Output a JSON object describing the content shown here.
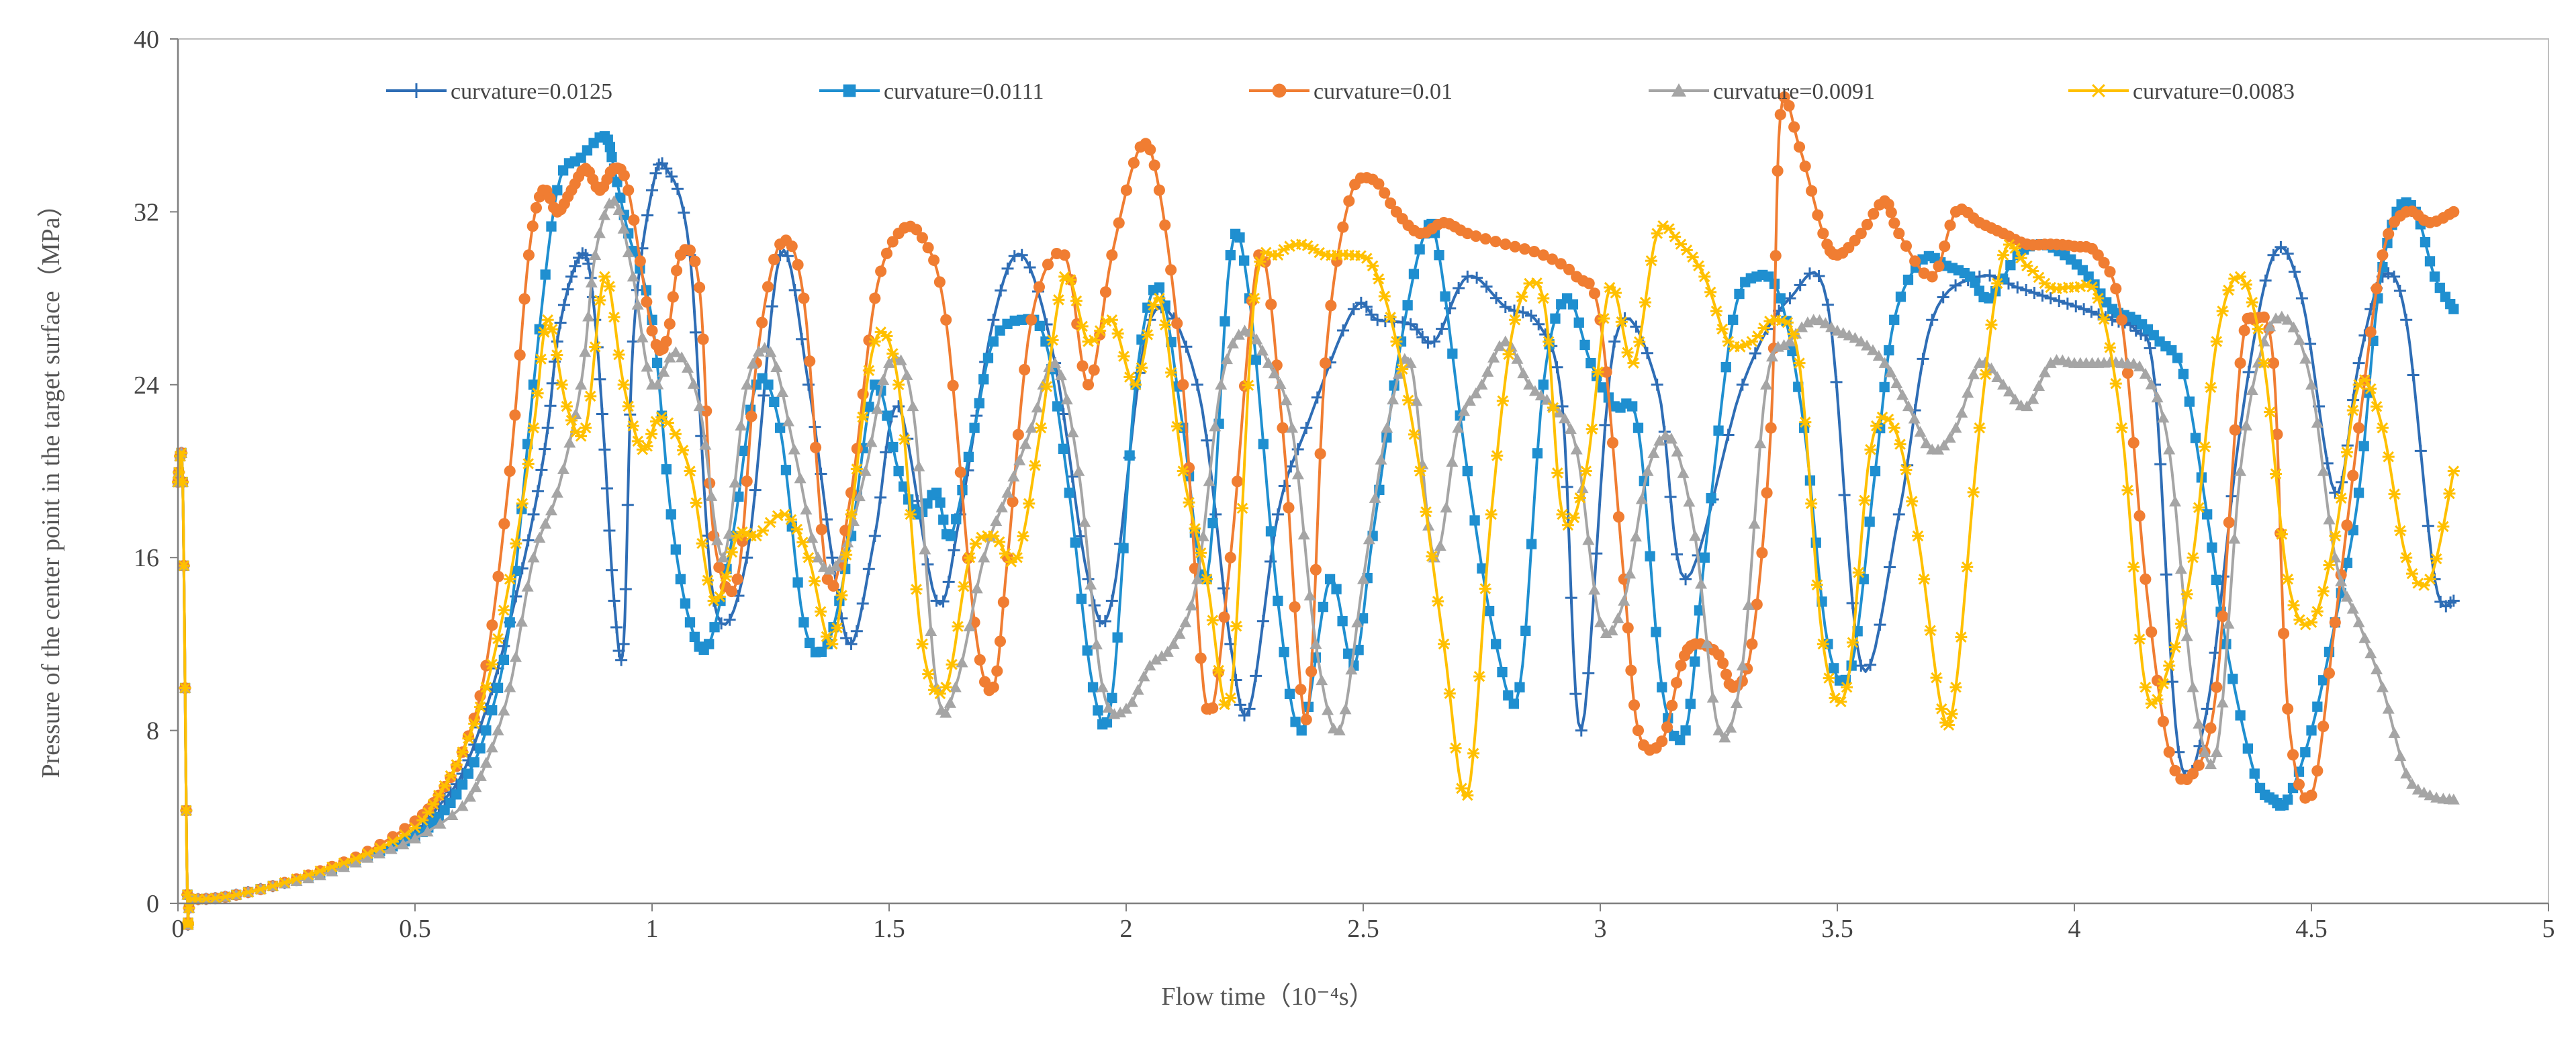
{
  "chart_data": {
    "type": "line",
    "title": "",
    "xlabel": "Flow time（10⁻⁴s）",
    "ylabel": "Pressure of the center point in the target surface（MPa）",
    "xlim": [
      0,
      5
    ],
    "ylim": [
      0,
      40
    ],
    "xticks": [
      "0",
      "0.5",
      "1",
      "1.5",
      "2",
      "2.5",
      "3",
      "3.5",
      "4",
      "4.5",
      "5"
    ],
    "yticks": [
      "0",
      "8",
      "16",
      "24",
      "32",
      "40"
    ],
    "legend_position": "top",
    "grid": false,
    "series": [
      {
        "name": "curvature=0.0125",
        "color": "#2E6DB5",
        "marker": "plus",
        "x": [
          0,
          0.01,
          0.02,
          0.03,
          0.1,
          0.2,
          0.3,
          0.4,
          0.5,
          0.55,
          0.6,
          0.65,
          0.7,
          0.75,
          0.78,
          0.8,
          0.83,
          0.86,
          0.88,
          0.9,
          0.92,
          0.94,
          0.96,
          1.0,
          1.03,
          1.08,
          1.13,
          1.2,
          1.27,
          1.33,
          1.38,
          1.42,
          1.47,
          1.52,
          1.6,
          1.65,
          1.72,
          1.78,
          1.85,
          1.92,
          1.97,
          2.05,
          2.15,
          2.22,
          2.26,
          2.32,
          2.38,
          2.48,
          2.53,
          2.6,
          2.65,
          2.72,
          2.8,
          2.87,
          2.92,
          2.96,
          3.03,
          3.12,
          3.18,
          3.3,
          3.4,
          3.48,
          3.55,
          3.63,
          3.7,
          3.8,
          3.88,
          3.95,
          4.02,
          4.08,
          4.13,
          4.17,
          4.22,
          4.28,
          4.35,
          4.42,
          4.48,
          4.55,
          4.6,
          4.65,
          4.7,
          4.76,
          4.8
        ],
        "y": [
          19.5,
          19.5,
          0.4,
          0.2,
          0.3,
          0.8,
          1.4,
          2.2,
          3.3,
          4.5,
          6,
          9,
          13,
          18,
          22,
          26,
          29,
          30,
          27,
          21,
          14,
          12,
          26,
          33,
          34,
          30,
          14,
          16,
          30,
          24,
          16,
          12,
          17,
          23,
          14,
          18,
          27,
          30,
          25,
          15,
          14,
          27,
          24,
          12,
          9,
          18,
          22,
          27.5,
          27,
          26.8,
          26,
          29,
          27.6,
          26.8,
          23,
          8,
          26,
          24,
          15,
          24,
          28,
          27.7,
          11,
          18,
          27,
          29,
          28.5,
          28,
          27.5,
          27,
          26.5,
          24,
          7,
          9,
          22,
          30,
          28,
          19,
          25,
          29,
          27,
          15,
          14
        ]
      },
      {
        "name": "curvature=0.0111",
        "color": "#1F8FD0",
        "marker": "square",
        "x": [
          0,
          0.01,
          0.02,
          0.03,
          0.1,
          0.2,
          0.3,
          0.4,
          0.5,
          0.55,
          0.6,
          0.65,
          0.7,
          0.75,
          0.8,
          0.85,
          0.9,
          0.92,
          0.95,
          1.0,
          1.04,
          1.08,
          1.12,
          1.17,
          1.22,
          1.27,
          1.32,
          1.37,
          1.42,
          1.47,
          1.52,
          1.56,
          1.6,
          1.63,
          1.68,
          1.72,
          1.78,
          1.83,
          1.88,
          1.93,
          1.97,
          2.02,
          2.07,
          2.12,
          2.17,
          2.22,
          2.26,
          2.32,
          2.37,
          2.43,
          2.48,
          2.52,
          2.58,
          2.63,
          2.66,
          2.72,
          2.78,
          2.83,
          2.88,
          2.93,
          2.98,
          3.03,
          3.08,
          3.13,
          3.18,
          3.22,
          3.28,
          3.33,
          3.38,
          3.43,
          3.48,
          3.53,
          3.58,
          3.62,
          3.68,
          3.73,
          3.78,
          3.82,
          3.88,
          3.93,
          3.98,
          4.03,
          4.08,
          4.13,
          4.18,
          4.23,
          4.28,
          4.32,
          4.38,
          4.42,
          4.45,
          4.5,
          4.55,
          4.6,
          4.64,
          4.68,
          4.72,
          4.76,
          4.8
        ],
        "y": [
          19.5,
          19.5,
          0.4,
          0.2,
          0.3,
          0.8,
          1.4,
          2.2,
          3.1,
          4,
          5.5,
          8,
          13,
          24,
          33,
          34.5,
          35.5,
          34,
          31,
          27,
          18,
          13,
          12,
          17,
          24,
          22,
          13,
          12,
          17,
          24,
          20,
          18,
          19,
          17,
          22,
          26,
          27,
          26,
          19,
          10,
          9.5,
          24,
          28.5,
          22,
          15,
          30,
          28,
          14,
          8,
          15,
          11,
          17,
          26,
          31,
          30,
          20,
          12,
          10,
          24,
          28,
          25,
          23,
          22,
          10,
          8,
          16,
          27,
          29,
          28,
          22,
          12,
          11,
          20,
          27,
          29.8,
          29.5,
          29,
          28,
          30,
          30.5,
          30,
          29,
          27.5,
          27,
          26,
          24.5,
          18,
          12,
          6,
          4.8,
          4.8,
          8,
          13,
          19,
          28,
          32,
          32,
          29,
          27.5
        ]
      },
      {
        "name": "curvature=0.01",
        "color": "#F07D32",
        "marker": "circle",
        "x": [
          0,
          0.01,
          0.02,
          0.03,
          0.1,
          0.2,
          0.3,
          0.4,
          0.5,
          0.55,
          0.6,
          0.65,
          0.7,
          0.74,
          0.77,
          0.8,
          0.83,
          0.86,
          0.89,
          0.92,
          0.95,
          1.0,
          1.03,
          1.06,
          1.1,
          1.13,
          1.18,
          1.22,
          1.27,
          1.32,
          1.37,
          1.42,
          1.47,
          1.52,
          1.57,
          1.62,
          1.68,
          1.72,
          1.75,
          1.8,
          1.87,
          1.92,
          1.97,
          2.03,
          2.07,
          2.12,
          2.17,
          2.22,
          2.28,
          2.33,
          2.38,
          2.42,
          2.47,
          2.52,
          2.57,
          2.62,
          2.67,
          2.72,
          2.8,
          2.88,
          2.95,
          3.0,
          3.05,
          3.08,
          3.13,
          3.17,
          3.2,
          3.25,
          3.28,
          3.32,
          3.36,
          3.38,
          3.42,
          3.47,
          3.5,
          3.55,
          3.6,
          3.63,
          3.7,
          3.75,
          3.8,
          3.85,
          3.9,
          3.95,
          4.0,
          4.05,
          4.1,
          4.15,
          4.2,
          4.25,
          4.3,
          4.35,
          4.38,
          4.42,
          4.45,
          4.5,
          4.55,
          4.6,
          4.65,
          4.7,
          4.75,
          4.8
        ],
        "y": [
          19.5,
          19.5,
          0.4,
          0.2,
          0.3,
          0.8,
          1.5,
          2.4,
          3.8,
          5,
          7,
          11,
          20,
          30,
          33,
          32,
          33,
          34,
          33,
          34,
          33,
          26.5,
          26,
          30,
          28.5,
          17,
          15,
          25,
          30.5,
          28,
          15,
          19,
          28,
          31,
          30.8,
          27,
          13,
          10,
          16,
          27,
          30,
          24,
          30,
          35,
          33,
          24,
          9,
          16,
          30,
          22,
          8.5,
          25,
          32.5,
          33.5,
          32,
          31,
          31.5,
          31,
          30.5,
          30,
          29,
          27,
          15,
          8,
          7.5,
          11,
          12,
          11.5,
          10,
          12,
          22,
          36.5,
          35,
          31,
          30,
          31,
          32.5,
          31,
          29,
          32,
          31.5,
          31,
          30.5,
          30.5,
          30.4,
          30,
          27,
          15,
          7,
          6,
          10,
          25,
          27,
          25,
          9,
          5,
          13,
          22,
          30,
          32,
          31.5,
          32
        ]
      },
      {
        "name": "curvature=0.0091",
        "color": "#A5A5A5",
        "marker": "triangle",
        "x": [
          0,
          0.01,
          0.02,
          0.03,
          0.1,
          0.2,
          0.3,
          0.4,
          0.5,
          0.6,
          0.65,
          0.7,
          0.75,
          0.8,
          0.85,
          0.88,
          0.92,
          0.96,
          1.0,
          1.05,
          1.1,
          1.15,
          1.2,
          1.25,
          1.3,
          1.35,
          1.4,
          1.45,
          1.5,
          1.55,
          1.6,
          1.64,
          1.7,
          1.75,
          1.8,
          1.85,
          1.9,
          1.95,
          2.0,
          2.05,
          2.1,
          2.15,
          2.2,
          2.25,
          2.3,
          2.35,
          2.4,
          2.45,
          2.5,
          2.55,
          2.6,
          2.65,
          2.7,
          2.75,
          2.8,
          2.85,
          2.9,
          2.95,
          3.0,
          3.05,
          3.1,
          3.15,
          3.2,
          3.25,
          3.3,
          3.35,
          3.4,
          3.45,
          3.5,
          3.55,
          3.6,
          3.65,
          3.7,
          3.75,
          3.8,
          3.85,
          3.9,
          3.95,
          4.0,
          4.05,
          4.1,
          4.15,
          4.2,
          4.25,
          4.3,
          4.35,
          4.4,
          4.45,
          4.5,
          4.55,
          4.6,
          4.65,
          4.7,
          4.75,
          4.8
        ],
        "y": [
          19.5,
          19.5,
          0.4,
          0.2,
          0.3,
          0.8,
          1.3,
          2.1,
          3,
          4.5,
          6.5,
          10,
          16,
          19,
          24,
          30,
          32.5,
          29,
          24,
          25.5,
          23,
          16,
          24,
          25.5,
          21,
          16,
          16,
          20,
          25,
          23,
          10,
          10,
          16,
          19,
          22,
          25,
          20,
          10,
          9,
          11,
          12,
          15,
          24,
          26.5,
          25,
          22,
          12,
          8,
          15,
          22,
          25,
          16,
          22,
          24,
          26,
          24,
          23,
          21,
          13,
          14,
          20,
          21.5,
          17,
          8,
          11,
          24,
          26,
          27,
          26.5,
          26,
          25,
          23,
          21,
          22,
          25,
          24,
          23,
          25,
          25,
          25,
          25,
          24.5,
          21,
          10,
          7,
          20,
          26,
          27,
          24,
          16,
          13,
          10,
          6,
          5,
          4.8
        ]
      },
      {
        "name": "curvature=0.0083",
        "color": "#FFC000",
        "marker": "star",
        "x": [
          0,
          0.01,
          0.02,
          0.03,
          0.1,
          0.2,
          0.3,
          0.4,
          0.5,
          0.55,
          0.6,
          0.65,
          0.7,
          0.75,
          0.78,
          0.82,
          0.86,
          0.9,
          0.94,
          0.98,
          1.02,
          1.08,
          1.13,
          1.18,
          1.22,
          1.28,
          1.33,
          1.38,
          1.42,
          1.47,
          1.52,
          1.57,
          1.62,
          1.67,
          1.72,
          1.77,
          1.82,
          1.87,
          1.92,
          1.97,
          2.02,
          2.07,
          2.12,
          2.17,
          2.22,
          2.27,
          2.32,
          2.37,
          2.42,
          2.47,
          2.52,
          2.57,
          2.62,
          2.67,
          2.72,
          2.77,
          2.82,
          2.88,
          2.92,
          2.97,
          3.02,
          3.07,
          3.12,
          3.17,
          3.22,
          3.27,
          3.32,
          3.37,
          3.42,
          3.47,
          3.52,
          3.57,
          3.62,
          3.67,
          3.72,
          3.75,
          3.8,
          3.85,
          3.9,
          3.95,
          4.0,
          4.05,
          4.1,
          4.15,
          4.2,
          4.25,
          4.3,
          4.35,
          4.4,
          4.45,
          4.5,
          4.55,
          4.6,
          4.65,
          4.7,
          4.75,
          4.8
        ],
        "y": [
          19.5,
          19.5,
          0.4,
          0.2,
          0.3,
          0.8,
          1.5,
          2.3,
          3.5,
          5,
          7,
          10,
          15,
          22,
          27,
          23,
          22,
          29,
          24,
          21,
          22.5,
          20,
          14,
          17,
          17,
          18,
          16,
          12,
          18,
          26,
          24,
          12,
          10,
          16,
          17,
          16,
          22,
          29,
          26,
          27,
          24,
          28,
          20,
          15,
          9.5,
          28,
          30,
          30.5,
          30,
          30,
          29.5,
          26,
          20,
          12,
          5,
          18,
          27,
          28,
          18,
          20,
          28.5,
          25,
          31,
          30.5,
          29,
          26,
          26,
          27,
          25,
          12,
          10,
          21,
          22,
          17,
          9,
          10,
          22,
          30,
          29.5,
          28.5,
          28.5,
          28,
          22,
          10,
          11,
          16,
          26,
          29,
          25,
          15,
          13,
          17,
          24,
          22,
          16,
          15,
          20
        ]
      }
    ]
  }
}
